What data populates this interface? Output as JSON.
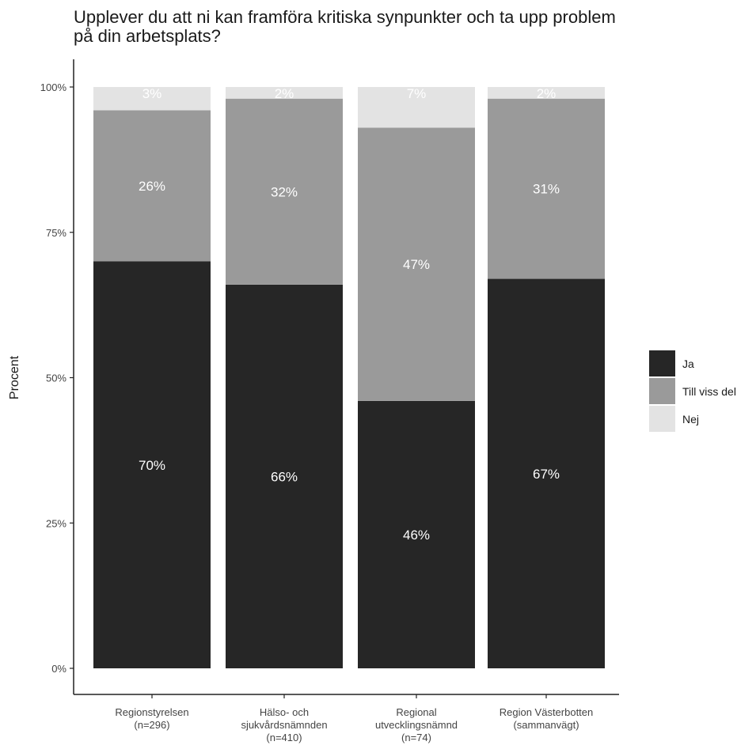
{
  "chart_data": {
    "type": "bar",
    "stacked": true,
    "title_lines": [
      "Upplever du att ni kan framföra kritiska synpunkter och ta upp problem",
      "på din arbetsplats?"
    ],
    "ylabel": "Procent",
    "xlabel": "",
    "ylim": [
      0,
      100
    ],
    "yticks": [
      "0%",
      "25%",
      "50%",
      "75%",
      "100%"
    ],
    "ytick_values": [
      0,
      25,
      50,
      75,
      100
    ],
    "categories": [
      [
        "Regionstyrelsen",
        "(n=296)"
      ],
      [
        "Hälso- och",
        "sjukvårdsnämnden",
        "(n=410)"
      ],
      [
        "Regional",
        "utvecklingsnämnd",
        "(n=74)"
      ],
      [
        "Region Västerbotten",
        "(sammanvägt)"
      ]
    ],
    "series": [
      {
        "name": "Ja",
        "color": "#262626",
        "values": [
          70,
          66,
          46,
          67
        ],
        "labels": [
          "70%",
          "66%",
          "46%",
          "67%"
        ]
      },
      {
        "name": "Till viss del",
        "color": "#9a9a9a",
        "values": [
          26,
          32,
          47,
          31
        ],
        "labels": [
          "26%",
          "32%",
          "47%",
          "31%"
        ]
      },
      {
        "name": "Nej",
        "color": "#e3e3e3",
        "values": [
          3,
          2,
          7,
          2
        ],
        "labels": [
          "3%",
          "2%",
          "7%",
          "2%"
        ]
      }
    ],
    "legend_position": "right",
    "grid": false
  }
}
